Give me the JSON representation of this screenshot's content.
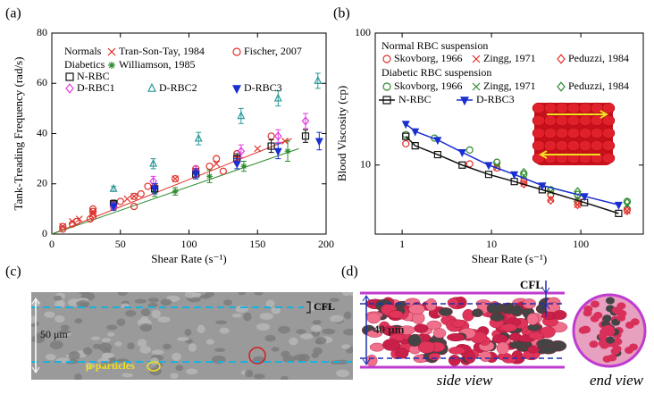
{
  "chart_data": [
    {
      "type": "scatter",
      "panel_label": "(a)",
      "x_label": "Shear Rate (s⁻¹)",
      "y_label": "Tank-Treading Frequency (rad/s)",
      "xlim": [
        0,
        200
      ],
      "ylim": [
        0,
        80
      ],
      "xticks": [
        0,
        50,
        100,
        150,
        200
      ],
      "yticks": [
        0,
        20,
        40,
        60,
        80
      ],
      "legend_groups": [
        "Normals",
        "Diabetics"
      ],
      "series": [
        {
          "name": "Tran-Son-Tay, 1984",
          "color": "#e0302a",
          "marker": "x",
          "x": [
            8,
            15,
            20,
            30,
            30,
            45,
            55,
            60,
            75,
            90,
            105,
            120,
            135,
            150,
            170
          ],
          "values": [
            3,
            5,
            6,
            8,
            9,
            11,
            14,
            15,
            19,
            22,
            25,
            28,
            30,
            34,
            37
          ]
        },
        {
          "name": "Fischer, 2007",
          "color": "#e0302a",
          "marker": "o",
          "x": [
            8,
            8,
            15,
            18,
            28,
            30,
            30,
            30,
            45,
            50,
            60,
            60,
            65,
            70,
            90,
            105,
            115,
            120,
            125,
            135,
            160
          ],
          "values": [
            2,
            3,
            4,
            5,
            6,
            7,
            9,
            10,
            12,
            13,
            11,
            15,
            16,
            19,
            22,
            26,
            27,
            30,
            25,
            32,
            39
          ]
        },
        {
          "name": "Williamson, 1985",
          "color": "#2e8b2e",
          "marker": "*",
          "x": [
            45,
            75,
            90,
            115,
            140,
            172
          ],
          "values": [
            11,
            17,
            17,
            23,
            27,
            33
          ],
          "errors": [
            1.5,
            2,
            1.5,
            2.5,
            2,
            4
          ]
        },
        {
          "name": "N-RBC",
          "color": "#111111",
          "marker": "s",
          "x": [
            45,
            75,
            105,
            135,
            160,
            185
          ],
          "values": [
            12,
            18,
            24,
            30,
            35,
            39
          ],
          "errors": [
            1.5,
            2,
            2,
            2,
            2.5,
            2.5
          ]
        },
        {
          "name": "D-RBC1",
          "color": "#e040e0",
          "marker": "d",
          "x": [
            45,
            74,
            105,
            138,
            165,
            185
          ],
          "values": [
            11,
            21,
            25,
            33,
            39,
            45
          ],
          "errors": [
            1.5,
            2,
            2,
            2.5,
            2.5,
            3
          ]
        },
        {
          "name": "D-RBC2",
          "color": "#2a9a9a",
          "marker": "^",
          "x": [
            45,
            74,
            107,
            138,
            165,
            194
          ],
          "values": [
            18,
            28,
            38,
            47,
            54,
            61
          ],
          "errors": [
            1,
            2,
            2.5,
            3,
            3,
            3
          ]
        },
        {
          "name": "D-RBC3",
          "color": "#1a2fd0",
          "marker": "v",
          "x": [
            45,
            75,
            105,
            135,
            165,
            195
          ],
          "values": [
            11,
            18,
            24,
            28,
            33,
            37
          ],
          "errors": [
            1.5,
            2,
            2,
            2,
            3,
            3.5
          ]
        }
      ],
      "fit_lines": [
        {
          "color": "#e0302a",
          "x": [
            0,
            175
          ],
          "values": [
            0,
            38
          ]
        },
        {
          "color": "#2e8b2e",
          "x": [
            0,
            180
          ],
          "values": [
            0,
            34
          ]
        }
      ]
    },
    {
      "type": "scatter",
      "panel_label": "(b)",
      "x_label": "Shear Rate (s⁻¹)",
      "y_label": "Blood Viscosity (cp)",
      "xlog": true,
      "ylog": true,
      "xlim": [
        0.5,
        500
      ],
      "ylim": [
        3,
        100
      ],
      "xticks": [
        1,
        10,
        100
      ],
      "yticks": [
        10,
        100
      ],
      "legend_groups": [
        "Normal RBC suspension",
        "Diabetic RBC suspension"
      ],
      "series": [
        {
          "name": "Skovborg, 1966",
          "color": "#e0302a",
          "marker": "o",
          "x": [
            1.1,
            5.7,
            11.5,
            23,
            46,
            92,
            330
          ],
          "values": [
            14.5,
            10.2,
            9.5,
            7.5,
            6,
            5.3,
            4.6
          ]
        },
        {
          "name": "Zingg, 1971",
          "color": "#e0302a",
          "marker": "x",
          "x": [
            11.5,
            23,
            46,
            92,
            330
          ],
          "values": [
            9.6,
            7.3,
            5.5,
            5,
            4.5
          ]
        },
        {
          "name": "Peduzzi, 1984",
          "color": "#e0302a",
          "marker": "d",
          "x": [
            23,
            46,
            92,
            330
          ],
          "values": [
            7.2,
            5.4,
            5,
            4.5
          ]
        },
        {
          "name": "Skovborg, 1966",
          "color": "#2e8b2e",
          "marker": "o",
          "x": [
            1.1,
            2.3,
            5.7,
            11.5,
            23,
            46,
            92,
            330
          ],
          "values": [
            17,
            16,
            13,
            10.5,
            8.5,
            6.5,
            6,
            5.3
          ]
        },
        {
          "name": "Zingg, 1971",
          "color": "#2e8b2e",
          "marker": "x",
          "x": [
            11.5,
            23,
            46,
            92,
            330
          ],
          "values": [
            10,
            8.3,
            6.3,
            5.5,
            5
          ]
        },
        {
          "name": "Peduzzi, 1984",
          "color": "#2e8b2e",
          "marker": "d",
          "x": [
            23,
            92,
            330
          ],
          "values": [
            8.8,
            6.3,
            5.2
          ]
        },
        {
          "name": "N-RBC",
          "color": "#111111",
          "marker": "s",
          "line": true,
          "x": [
            1.1,
            1.4,
            2.5,
            4.7,
            9.3,
            18,
            37,
            110,
            265
          ],
          "values": [
            16.5,
            14,
            12,
            10,
            8.5,
            7.5,
            6.5,
            5.2,
            4.3
          ]
        },
        {
          "name": "D-RBC3",
          "color": "#1a2fd0",
          "marker": "v",
          "line": true,
          "x": [
            1.1,
            1.4,
            2.5,
            4.7,
            9.3,
            18,
            37,
            110,
            265
          ],
          "values": [
            20.5,
            18,
            15.5,
            12.5,
            10,
            8.5,
            7,
            5.8,
            5
          ]
        }
      ]
    }
  ],
  "panel_c": {
    "label": "(c)",
    "cfl": "CFL",
    "width": "50 μm",
    "particles": "μ-particles"
  },
  "panel_d": {
    "label": "(d)",
    "cfl": "CFL",
    "width": "40 μm",
    "side": "side view",
    "end": "end view"
  }
}
